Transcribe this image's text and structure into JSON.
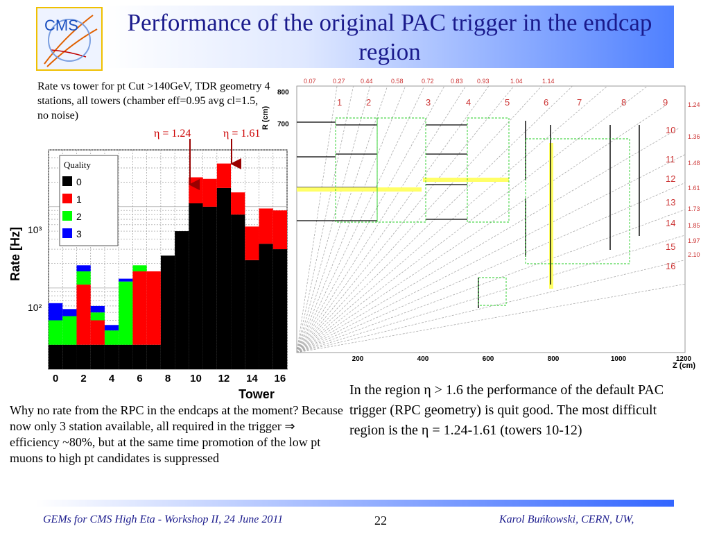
{
  "title": "Performance of the original PAC trigger in the endcap region",
  "logo_text": "CMS",
  "description": "Rate vs tower for pt Cut >140GeV, TDR geometry 4 stations, all towers (chamber eff=0.95 avg cl=1.5, no noise)",
  "eta_labels": [
    "η = 1.24",
    "η = 1.61"
  ],
  "chart": {
    "ylabel": "Rate [Hz]",
    "xlabel": "Tower",
    "legend_title": "Quality",
    "legend_entries": [
      "0",
      "1",
      "2",
      "3"
    ],
    "xticks": [
      "0",
      "2",
      "4",
      "6",
      "8",
      "10",
      "12",
      "14",
      "16"
    ],
    "yticks": [
      "10³",
      "10²"
    ]
  },
  "chart_data": {
    "type": "bar",
    "stacked": true,
    "y_scale": "log",
    "xlabel": "Tower",
    "ylabel": "Rate [Hz]",
    "categories": [
      "0",
      "1",
      "2",
      "3",
      "4",
      "5",
      "6",
      "7",
      "8",
      "9",
      "10",
      "11",
      "12",
      "13",
      "14",
      "15",
      "16"
    ],
    "series": [
      {
        "name": "0",
        "values": [
          20,
          20,
          20,
          20,
          20,
          20,
          20,
          20,
          250,
          500,
          1100,
          1000,
          1700,
          800,
          220,
          350,
          300
        ]
      },
      {
        "name": "1",
        "values": [
          0,
          0,
          90,
          20,
          0,
          0,
          140,
          140,
          0,
          0,
          1200,
          1200,
          1700,
          700,
          350,
          600,
          600
        ]
      },
      {
        "name": "2",
        "values": [
          20,
          25,
          50,
          10,
          10,
          100,
          30,
          0,
          0,
          0,
          0,
          0,
          0,
          0,
          0,
          0,
          0
        ]
      },
      {
        "name": "3",
        "values": [
          25,
          10,
          30,
          10,
          5,
          10,
          0,
          0,
          0,
          0,
          0,
          0,
          0,
          0,
          0,
          0,
          0
        ]
      }
    ],
    "colors": {
      "0": "#000000",
      "1": "#ff0000",
      "2": "#00ff00",
      "3": "#0000ff"
    }
  },
  "diagram": {
    "ylabel": "R (cm)",
    "xlabel": "Z (cm)",
    "xticks": [
      "200",
      "400",
      "600",
      "800",
      "1000",
      "1200"
    ],
    "yticks": [
      "800",
      "700"
    ],
    "top_eta": [
      "0.07",
      "0.27",
      "0.44",
      "0.58",
      "0.72",
      "0.83",
      "0.93",
      "1.04",
      "1.14"
    ],
    "top_towers": [
      "1",
      "2",
      "3",
      "4",
      "5",
      "6",
      "7",
      "8",
      "9"
    ],
    "right_towers": [
      "10",
      "11",
      "12",
      "13",
      "14",
      "15",
      "16"
    ],
    "right_eta": [
      "1.24",
      "1.36",
      "1.48",
      "1.61",
      "1.73",
      "1.85",
      "1.97",
      "2.10"
    ]
  },
  "left_text": "Why no rate from the RPC in the endcaps at the moment? Because now only 3 station available, all required in the trigger ⇒ efficiency ~80%, but at the same time promotion of the low pt muons to high pt candidates is suppressed",
  "right_text": "In the region η > 1.6 the performance of the default PAC trigger (RPC geometry) is quit good. The most difficult region is the η = 1.24-1.61 (towers 10-12)",
  "footer": {
    "left": "GEMs for CMS High Eta - Workshop II, 24 June 2011",
    "page": "22",
    "right": "Karol Buńkowski, CERN, UW,"
  }
}
